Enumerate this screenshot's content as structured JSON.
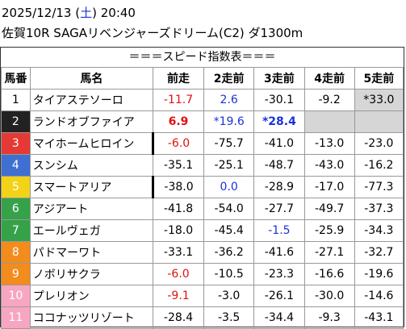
{
  "header": {
    "date": "2025/12/13",
    "weekday_open": " (",
    "weekday": "土",
    "weekday_close": ")",
    "time": " 20:40",
    "race": "佐賀10R SAGAリベンジャーズドリーム(C2) ダ1300m"
  },
  "subtitle": "＝＝＝スピード指数表＝＝＝",
  "columns": [
    "馬番",
    "馬名",
    "前走",
    "2走前",
    "3走前",
    "4走前",
    "5走前"
  ],
  "colors": {
    "waku1": "#ffffff",
    "waku2": "#222222",
    "waku3": "#e53935",
    "waku4": "#3f6fd1",
    "waku5": "#f2d318",
    "waku6": "#35a24a",
    "waku7": "#f28c1c",
    "waku8": "#f7a6c1",
    "red": "#e01010",
    "blue": "#1a33d6",
    "highlight": "#d6d6d6"
  },
  "rows": [
    {
      "num": "1",
      "name": "タイアステソーロ",
      "v": [
        "-11.7",
        "2.6",
        "-30.1",
        "-9.2",
        "*33.0"
      ]
    },
    {
      "num": "2",
      "name": "ランドオブファイア",
      "v": [
        "6.9",
        "*19.6",
        "*28.4",
        "",
        ""
      ]
    },
    {
      "num": "3",
      "name": "マイホームヒロイン",
      "v": [
        "-6.0",
        "-75.7",
        "-41.0",
        "-13.0",
        "-23.0"
      ]
    },
    {
      "num": "4",
      "name": "スンシム",
      "v": [
        "-35.1",
        "-25.1",
        "-48.7",
        "-43.0",
        "-16.2"
      ]
    },
    {
      "num": "5",
      "name": "スマートアリア",
      "v": [
        "-38.0",
        "0.0",
        "-28.9",
        "-17.0",
        "-77.3"
      ]
    },
    {
      "num": "6",
      "name": "アジアート",
      "v": [
        "-41.8",
        "-54.0",
        "-27.7",
        "-49.7",
        "-37.3"
      ]
    },
    {
      "num": "7",
      "name": "エールヴェガ",
      "v": [
        "-18.0",
        "-45.4",
        "-1.5",
        "-25.9",
        "-34.3"
      ]
    },
    {
      "num": "8",
      "name": "パドマーワト",
      "v": [
        "-33.1",
        "-36.2",
        "-41.6",
        "-27.1",
        "-32.7"
      ]
    },
    {
      "num": "9",
      "name": "ノボリサクラ",
      "v": [
        "-6.0",
        "-10.5",
        "-23.3",
        "-16.6",
        "-19.6"
      ]
    },
    {
      "num": "10",
      "name": "プレリオン",
      "v": [
        "-9.1",
        "-3.0",
        "-26.1",
        "-30.0",
        "-14.6"
      ]
    },
    {
      "num": "11",
      "name": "ココナッツリゾート",
      "v": [
        "-28.4",
        "-3.5",
        "-34.4",
        "-9.3",
        "-43.1"
      ]
    }
  ]
}
